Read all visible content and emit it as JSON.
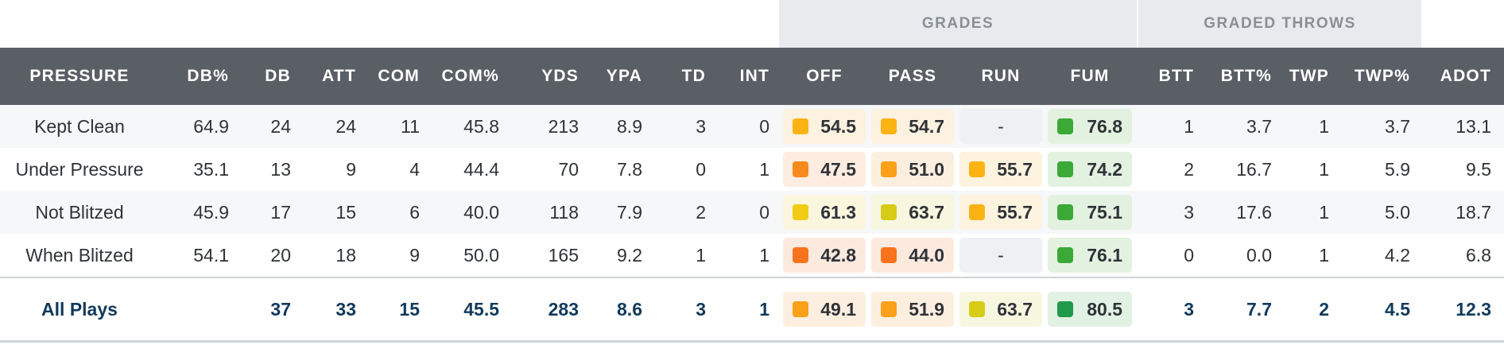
{
  "group_headers": {
    "grades": "GRADES",
    "graded_throws": "GRADED THROWS"
  },
  "columns": [
    "PRESSURE",
    "DB%",
    "DB",
    "ATT",
    "COM",
    "COM%",
    "YDS",
    "YPA",
    "TD",
    "INT",
    "OFF",
    "PASS",
    "RUN",
    "FUM",
    "BTT",
    "BTT%",
    "TWP",
    "TWP%",
    "ADOT"
  ],
  "rows": [
    {
      "label": "Kept Clean",
      "stats": [
        "64.9",
        "24",
        "24",
        "11",
        "45.8",
        "213",
        "8.9",
        "3",
        "0"
      ],
      "grades": [
        {
          "v": "54.5",
          "c": "#fbb314",
          "bg": "#fdf1df"
        },
        {
          "v": "54.7",
          "c": "#fbb314",
          "bg": "#fdf1df"
        },
        {
          "v": "-",
          "c": null,
          "bg": "#eef0f3"
        },
        {
          "v": "76.8",
          "c": "#3aa935",
          "bg": "#e3f2e0"
        }
      ],
      "throws": [
        "1",
        "3.7",
        "1",
        "3.7",
        "13.1"
      ]
    },
    {
      "label": "Under Pressure",
      "stats": [
        "35.1",
        "13",
        "9",
        "4",
        "44.4",
        "70",
        "7.8",
        "0",
        "1"
      ],
      "grades": [
        {
          "v": "47.5",
          "c": "#f78a1d",
          "bg": "#fdecdf"
        },
        {
          "v": "51.0",
          "c": "#fba019",
          "bg": "#fdefdf"
        },
        {
          "v": "55.7",
          "c": "#fbb314",
          "bg": "#fdf3df"
        },
        {
          "v": "74.2",
          "c": "#3aa935",
          "bg": "#e3f2e0"
        }
      ],
      "throws": [
        "2",
        "16.7",
        "1",
        "5.9",
        "9.5"
      ]
    },
    {
      "label": "Not Blitzed",
      "stats": [
        "45.9",
        "17",
        "15",
        "6",
        "40.0",
        "118",
        "7.9",
        "2",
        "0"
      ],
      "grades": [
        {
          "v": "61.3",
          "c": "#f2cc14",
          "bg": "#fcf6df"
        },
        {
          "v": "63.7",
          "c": "#d6cc16",
          "bg": "#f7f6df"
        },
        {
          "v": "55.7",
          "c": "#fbb314",
          "bg": "#fdf3df"
        },
        {
          "v": "75.1",
          "c": "#3aa935",
          "bg": "#e3f2e0"
        }
      ],
      "throws": [
        "3",
        "17.6",
        "1",
        "5.0",
        "18.7"
      ]
    },
    {
      "label": "When Blitzed",
      "stats": [
        "54.1",
        "20",
        "18",
        "9",
        "50.0",
        "165",
        "9.2",
        "1",
        "1"
      ],
      "grades": [
        {
          "v": "42.8",
          "c": "#f7731d",
          "bg": "#fdeadf"
        },
        {
          "v": "44.0",
          "c": "#f7731d",
          "bg": "#fdeadf"
        },
        {
          "v": "-",
          "c": null,
          "bg": "#eef0f3"
        },
        {
          "v": "76.1",
          "c": "#3aa935",
          "bg": "#e3f2e0"
        }
      ],
      "throws": [
        "0",
        "0.0",
        "1",
        "4.2",
        "6.8"
      ]
    }
  ],
  "total": {
    "label": "All Plays",
    "stats": [
      "",
      "37",
      "33",
      "15",
      "45.5",
      "283",
      "8.6",
      "3",
      "1"
    ],
    "grades": [
      {
        "v": "49.1",
        "c": "#fba019",
        "bg": "#fdefdf"
      },
      {
        "v": "51.9",
        "c": "#fba019",
        "bg": "#fdefdf"
      },
      {
        "v": "63.7",
        "c": "#d6cc16",
        "bg": "#f7f6df"
      },
      {
        "v": "80.5",
        "c": "#1f9a4a",
        "bg": "#e1f1e3"
      }
    ],
    "throws": [
      "3",
      "7.7",
      "2",
      "4.5",
      "12.3"
    ]
  }
}
